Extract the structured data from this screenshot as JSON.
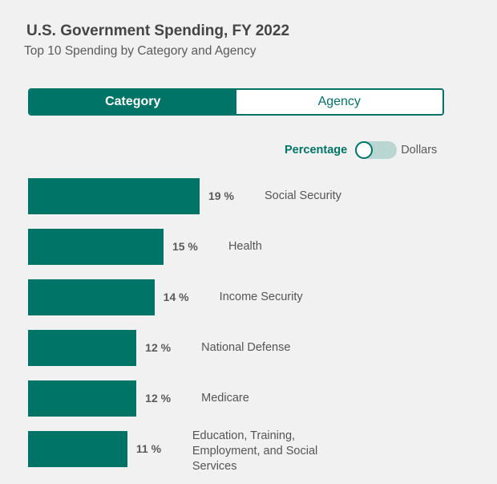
{
  "header": {
    "title": "U.S. Government Spending, FY 2022",
    "subtitle": "Top 10 Spending by Category and Agency"
  },
  "tabs": [
    {
      "label": "Category",
      "active": true
    },
    {
      "label": "Agency",
      "active": false
    }
  ],
  "toggle": {
    "left_label": "Percentage",
    "right_label": "Dollars",
    "selected": "Percentage"
  },
  "colors": {
    "accent": "#007466",
    "toggle_track": "#b9d6d3",
    "background": "#f1f1f1"
  },
  "chart_data": {
    "type": "bar",
    "orientation": "horizontal",
    "categories": [
      "Social Security",
      "Health",
      "Income Security",
      "National Defense",
      "Medicare",
      "Education, Training, Employment, and Social Services"
    ],
    "values": [
      19,
      15,
      14,
      12,
      12,
      11
    ],
    "value_labels": [
      "19 %",
      "15 %",
      "14 %",
      "12 %",
      "12 %",
      "11 %"
    ],
    "unit": "%"
  }
}
